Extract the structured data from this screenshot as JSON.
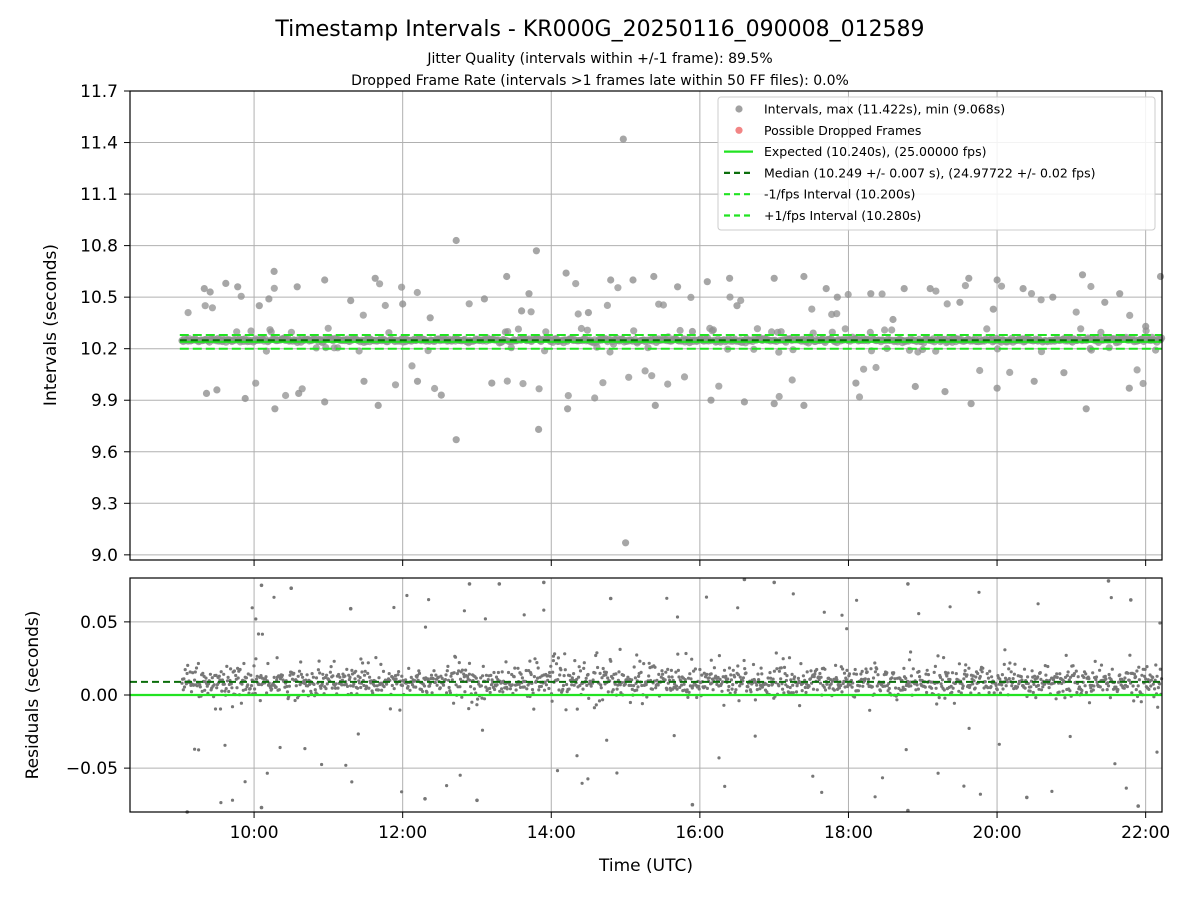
{
  "chart_data": [
    {
      "type": "scatter",
      "panel": "intervals",
      "title": "Timestamp Intervals - KR000G_20250116_090008_012589",
      "subtitles": [
        "Jitter Quality (intervals within +/-1 frame): 89.5%",
        "Dropped Frame Rate (intervals >1 frames late within 50 FF files): 0.0%"
      ],
      "ylabel": "Intervals (seconds)",
      "ylim": [
        8.97,
        11.7
      ],
      "yticks": [
        "9.0",
        "9.3",
        "9.6",
        "9.9",
        "10.2",
        "10.5",
        "10.8",
        "11.1",
        "11.4",
        "11.7"
      ],
      "xlim_hours": [
        8.33,
        22.22
      ],
      "grid": true,
      "legend_position": "top-right",
      "legend": [
        "Intervals, max (11.422s), min (9.068s)",
        "Possible Dropped Frames",
        "Expected (10.240s), (25.00000 fps)",
        "Median (10.249 +/- 0.007 s), (24.97722 +/- 0.02 fps)",
        "-1/fps Interval (10.200s)",
        "+1/fps Interval (10.280s)"
      ],
      "lines": {
        "expected": 10.24,
        "median": 10.249,
        "minus_one_fps": 10.2,
        "plus_one_fps": 10.28
      },
      "series": [
        {
          "name": "Intervals, max (11.422s), min (9.068s)",
          "outliers": [
            {
              "x": 9.33,
              "y": 10.55
            },
            {
              "x": 9.41,
              "y": 10.53
            },
            {
              "x": 9.36,
              "y": 9.94
            },
            {
              "x": 9.5,
              "y": 9.96
            },
            {
              "x": 9.62,
              "y": 10.58
            },
            {
              "x": 9.78,
              "y": 10.56
            },
            {
              "x": 9.88,
              "y": 9.91
            },
            {
              "x": 10.07,
              "y": 10.45
            },
            {
              "x": 10.2,
              "y": 10.49
            },
            {
              "x": 10.27,
              "y": 10.65
            },
            {
              "x": 10.28,
              "y": 9.85
            },
            {
              "x": 10.58,
              "y": 10.56
            },
            {
              "x": 10.6,
              "y": 9.94
            },
            {
              "x": 10.95,
              "y": 10.6
            },
            {
              "x": 10.95,
              "y": 9.89
            },
            {
              "x": 11.3,
              "y": 10.48
            },
            {
              "x": 11.48,
              "y": 10.01
            },
            {
              "x": 11.63,
              "y": 10.61
            },
            {
              "x": 11.67,
              "y": 9.87
            },
            {
              "x": 12.0,
              "y": 10.46
            },
            {
              "x": 12.2,
              "y": 10.01
            },
            {
              "x": 12.37,
              "y": 10.38
            },
            {
              "x": 12.52,
              "y": 9.93
            },
            {
              "x": 12.72,
              "y": 10.83
            },
            {
              "x": 12.72,
              "y": 9.67
            },
            {
              "x": 13.1,
              "y": 10.49
            },
            {
              "x": 13.2,
              "y": 10.0
            },
            {
              "x": 13.4,
              "y": 10.62
            },
            {
              "x": 13.6,
              "y": 10.42
            },
            {
              "x": 13.7,
              "y": 10.52
            },
            {
              "x": 13.8,
              "y": 10.77
            },
            {
              "x": 13.83,
              "y": 9.73
            },
            {
              "x": 14.2,
              "y": 10.64
            },
            {
              "x": 14.22,
              "y": 9.85
            },
            {
              "x": 14.5,
              "y": 10.41
            },
            {
              "x": 14.8,
              "y": 10.6
            },
            {
              "x": 14.97,
              "y": 11.42
            },
            {
              "x": 15.0,
              "y": 9.07
            },
            {
              "x": 15.1,
              "y": 10.6
            },
            {
              "x": 15.38,
              "y": 10.62
            },
            {
              "x": 15.4,
              "y": 9.87
            },
            {
              "x": 15.7,
              "y": 10.56
            },
            {
              "x": 15.9,
              "y": 10.3
            },
            {
              "x": 16.1,
              "y": 10.59
            },
            {
              "x": 16.15,
              "y": 9.9
            },
            {
              "x": 16.4,
              "y": 10.61
            },
            {
              "x": 16.5,
              "y": 10.45
            },
            {
              "x": 16.6,
              "y": 9.89
            },
            {
              "x": 17.0,
              "y": 10.61
            },
            {
              "x": 17.0,
              "y": 9.88
            },
            {
              "x": 17.4,
              "y": 10.62
            },
            {
              "x": 17.4,
              "y": 9.87
            },
            {
              "x": 17.7,
              "y": 10.55
            },
            {
              "x": 17.85,
              "y": 10.5
            },
            {
              "x": 18.1,
              "y": 10.0
            },
            {
              "x": 18.3,
              "y": 10.52
            },
            {
              "x": 18.6,
              "y": 10.37
            },
            {
              "x": 18.75,
              "y": 10.55
            },
            {
              "x": 18.9,
              "y": 9.98
            },
            {
              "x": 19.1,
              "y": 10.55
            },
            {
              "x": 19.3,
              "y": 9.95
            },
            {
              "x": 19.5,
              "y": 10.47
            },
            {
              "x": 19.62,
              "y": 10.61
            },
            {
              "x": 19.65,
              "y": 9.88
            },
            {
              "x": 19.95,
              "y": 10.43
            },
            {
              "x": 20.0,
              "y": 10.6
            },
            {
              "x": 20.0,
              "y": 9.97
            },
            {
              "x": 20.35,
              "y": 10.55
            },
            {
              "x": 20.5,
              "y": 10.01
            },
            {
              "x": 20.75,
              "y": 10.5
            },
            {
              "x": 20.9,
              "y": 10.06
            },
            {
              "x": 21.15,
              "y": 10.63
            },
            {
              "x": 21.2,
              "y": 9.85
            },
            {
              "x": 21.45,
              "y": 10.47
            },
            {
              "x": 21.65,
              "y": 10.52
            },
            {
              "x": 21.78,
              "y": 9.97
            },
            {
              "x": 22.0,
              "y": 10.33
            },
            {
              "x": 22.2,
              "y": 10.62
            }
          ]
        },
        {
          "name": "Possible Dropped Frames",
          "points": []
        }
      ]
    },
    {
      "type": "scatter",
      "panel": "residuals",
      "ylabel": "Residuals (seconds)",
      "xlabel": "Time (UTC)",
      "ylim": [
        -0.08,
        0.08
      ],
      "yticks": [
        "−0.05",
        "0.00",
        "0.05"
      ],
      "xticks": [
        "10:00",
        "12:00",
        "14:00",
        "16:00",
        "18:00",
        "20:00",
        "22:00"
      ],
      "xtick_hours": [
        10,
        12,
        14,
        16,
        18,
        20,
        22
      ],
      "xlim_hours": [
        8.33,
        22.22
      ],
      "grid": true,
      "lines": {
        "zero": 0.0,
        "median_offset": 0.009
      },
      "series": [
        {
          "name": "Residuals",
          "outliers": [
            {
              "x": 10.1,
              "y": 0.075
            },
            {
              "x": 10.5,
              "y": 0.073
            },
            {
              "x": 11.3,
              "y": 0.059
            },
            {
              "x": 12.9,
              "y": 0.076
            },
            {
              "x": 13.3,
              "y": 0.076
            },
            {
              "x": 13.9,
              "y": 0.077
            },
            {
              "x": 14.8,
              "y": 0.066
            },
            {
              "x": 16.6,
              "y": 0.079
            },
            {
              "x": 17.0,
              "y": 0.077
            },
            {
              "x": 18.8,
              "y": 0.076
            },
            {
              "x": 21.5,
              "y": 0.078
            },
            {
              "x": 21.8,
              "y": 0.065
            },
            {
              "x": 9.1,
              "y": -0.08
            },
            {
              "x": 10.1,
              "y": -0.077
            },
            {
              "x": 12.3,
              "y": -0.071
            },
            {
              "x": 13.0,
              "y": -0.072
            },
            {
              "x": 15.9,
              "y": -0.075
            },
            {
              "x": 18.8,
              "y": -0.079
            },
            {
              "x": 20.4,
              "y": -0.07
            },
            {
              "x": 21.9,
              "y": -0.076
            }
          ]
        }
      ]
    }
  ],
  "colors": {
    "points": "#909090",
    "residual_points": "#777777",
    "expected": "#22e322",
    "median": "#0b6e0b",
    "fps_interval": "#22e322",
    "dropped": "#f07070",
    "grid": "#b0b0b0"
  }
}
